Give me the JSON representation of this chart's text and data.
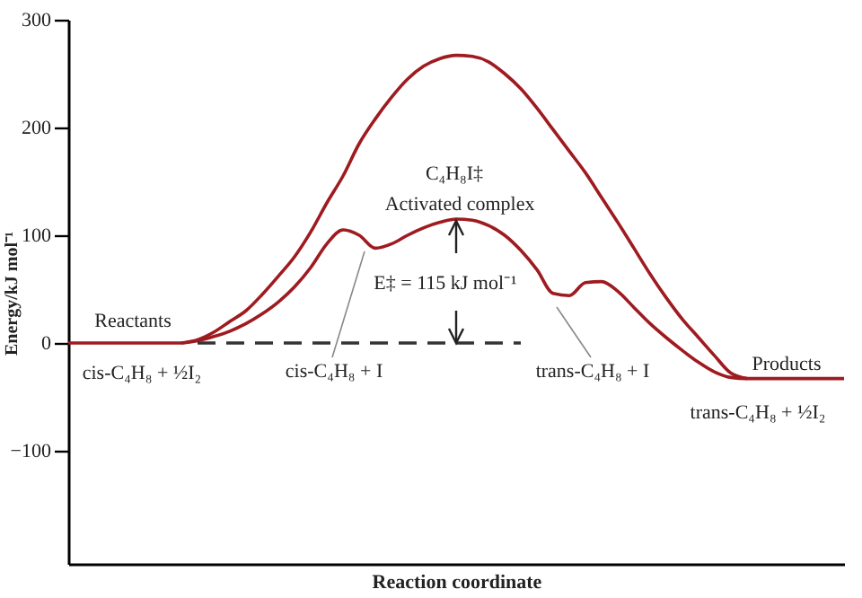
{
  "chart_data": {
    "type": "line",
    "xlabel": "Reaction coordinate",
    "ylabel": "Energy/kJ mol⁻¹",
    "tick_labels": "y",
    "categories": [
      null,
      null,
      null,
      null,
      null,
      null,
      null,
      null,
      null,
      null,
      null,
      null,
      null,
      null,
      null,
      null,
      null,
      null,
      null,
      null,
      null,
      null,
      null,
      null,
      null,
      null,
      null,
      null,
      null,
      null,
      null,
      null,
      null,
      null,
      null,
      null,
      null,
      null,
      null,
      null,
      null,
      null,
      null,
      null,
      null,
      null,
      null,
      null,
      null
    ],
    "ylim": [
      -205,
      300
    ],
    "yticks": [
      {
        "value": -100,
        "label": "−100"
      },
      0,
      100,
      200,
      300
    ],
    "series": [
      {
        "color": "#9e1b20",
        "values": [
          null,
          null,
          null,
          null,
          null,
          null,
          null,
          0,
          3,
          10,
          20,
          30,
          45,
          62,
          80,
          103,
          130,
          155,
          185,
          208,
          228,
          245,
          257,
          264,
          267,
          266,
          261,
          250,
          236,
          218,
          198,
          178,
          158,
          135,
          112,
          88,
          64,
          42,
          22,
          5,
          -12,
          -28,
          -33,
          null,
          null,
          null,
          null,
          null,
          null
        ]
      },
      {
        "color": "#9e1b20",
        "values": [
          0,
          0,
          0,
          0,
          0,
          0,
          0,
          0,
          2,
          6,
          11,
          18,
          27,
          38,
          52,
          70,
          92,
          105,
          100,
          88,
          92,
          100,
          107,
          112,
          115,
          114,
          109,
          100,
          86,
          68,
          46,
          44,
          56,
          57,
          48,
          33,
          18,
          5,
          -7,
          -18,
          -27,
          -32,
          -33,
          -33,
          -33,
          -33,
          -33,
          -33,
          -33
        ]
      },
      {
        "color": "#333333",
        "line_style": "dashed",
        "values": [
          null,
          null,
          null,
          null,
          null,
          null,
          null,
          null,
          0,
          0,
          0,
          0,
          0,
          0,
          0,
          0,
          0,
          0,
          0,
          0,
          0,
          0,
          0,
          0,
          0,
          0,
          0,
          0,
          0,
          null,
          null,
          null,
          null,
          null,
          null,
          null,
          null,
          null,
          null,
          null,
          null,
          null,
          null,
          null,
          null,
          null,
          null,
          null,
          null
        ]
      }
    ],
    "annotations": [
      "C₄H₈I‡",
      "Activated complex",
      "E‡ = 115 kJ mol⁻¹",
      "Reactants",
      "cis-C₄H₈ + ½I₂",
      "cis-C₄H₈ + I",
      "trans-C₄H₈ + I",
      "Products",
      "trans-C₄H₈ + ½I₂"
    ]
  }
}
